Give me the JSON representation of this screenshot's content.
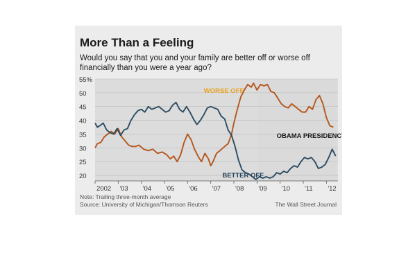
{
  "chart_data": {
    "type": "line",
    "title": "More Than a Feeling",
    "subtitle_lines": [
      "Would you say that you and your family are better off or worse off",
      "financially than you were a year ago?"
    ],
    "ylim": [
      18,
      55
    ],
    "yticks": [
      20,
      25,
      30,
      35,
      40,
      45,
      50,
      55
    ],
    "ytick_labels": [
      "20",
      "25",
      "30",
      "35",
      "40",
      "45",
      "50",
      "55%"
    ],
    "xlim": [
      2002.0,
      2012.5
    ],
    "xticks": [
      2002,
      2003,
      2004,
      2005,
      2006,
      2007,
      2008,
      2009,
      2010,
      2011,
      2012
    ],
    "xtick_labels": [
      "2002",
      "'03",
      "'04",
      "'05",
      "'06",
      "'07",
      "'08",
      "'09",
      "'10",
      "'11",
      "'12"
    ],
    "grid": true,
    "shaded_region": {
      "label": "OBAMA PRESIDENCY",
      "x_start": 2009.05,
      "x_end": 2012.4,
      "color": "#d9d9d9"
    },
    "series": [
      {
        "name": "WORSE OFF",
        "label_color": "#e8a320",
        "color": "#b5561c",
        "x": [
          2002.0,
          2002.1,
          2002.25,
          2002.4,
          2002.55,
          2002.7,
          2002.85,
          2003.0,
          2003.15,
          2003.3,
          2003.45,
          2003.6,
          2003.75,
          2003.9,
          2004.1,
          2004.3,
          2004.5,
          2004.7,
          2004.9,
          2005.1,
          2005.25,
          2005.4,
          2005.55,
          2005.7,
          2005.85,
          2006.0,
          2006.15,
          2006.3,
          2006.45,
          2006.6,
          2006.75,
          2006.9,
          2007.0,
          2007.1,
          2007.25,
          2007.4,
          2007.6,
          2007.75,
          2007.9,
          2008.0,
          2008.15,
          2008.3,
          2008.45,
          2008.6,
          2008.75,
          2008.85,
          2009.0,
          2009.15,
          2009.3,
          2009.45,
          2009.6,
          2009.75,
          2009.9,
          2010.05,
          2010.2,
          2010.35,
          2010.5,
          2010.65,
          2010.8,
          2010.95,
          2011.1,
          2011.25,
          2011.4,
          2011.55,
          2011.7,
          2011.85,
          2012.0,
          2012.15,
          2012.3
        ],
        "y": [
          30,
          31.5,
          32,
          34,
          35,
          36,
          35,
          37,
          34,
          32.5,
          31,
          30.5,
          30.5,
          31,
          29.5,
          29,
          29.5,
          28,
          28.5,
          27.5,
          26,
          27,
          25,
          27.5,
          32,
          35,
          33,
          29.5,
          27,
          25,
          28,
          26,
          23.5,
          25,
          28,
          29,
          30.5,
          31.5,
          35,
          39,
          44,
          48.5,
          51,
          53,
          52,
          53.5,
          51,
          53,
          52.5,
          53,
          50.5,
          50,
          48,
          46,
          45,
          44.5,
          46,
          45,
          44,
          43,
          43,
          45,
          44,
          47.5,
          49,
          46,
          41,
          38,
          37.5
        ]
      },
      {
        "name": "BETTER OFF",
        "label_color": "#1d3f57",
        "color": "#2c4c62",
        "x": [
          2002.0,
          2002.1,
          2002.2,
          2002.35,
          2002.5,
          2002.65,
          2002.8,
          2002.95,
          2003.1,
          2003.25,
          2003.4,
          2003.55,
          2003.7,
          2003.85,
          2004.0,
          2004.15,
          2004.3,
          2004.45,
          2004.6,
          2004.75,
          2004.9,
          2005.05,
          2005.2,
          2005.35,
          2005.5,
          2005.65,
          2005.8,
          2005.95,
          2006.1,
          2006.25,
          2006.4,
          2006.55,
          2006.7,
          2006.85,
          2007.0,
          2007.15,
          2007.3,
          2007.45,
          2007.6,
          2007.75,
          2007.9,
          2008.05,
          2008.2,
          2008.35,
          2008.5,
          2008.65,
          2008.8,
          2008.95,
          2009.1,
          2009.25,
          2009.4,
          2009.55,
          2009.7,
          2009.85,
          2010.0,
          2010.15,
          2010.3,
          2010.45,
          2010.6,
          2010.75,
          2010.9,
          2011.05,
          2011.2,
          2011.35,
          2011.5,
          2011.65,
          2011.8,
          2011.95,
          2012.1,
          2012.25,
          2012.4
        ],
        "y": [
          39,
          37.5,
          38,
          39,
          36.5,
          35.5,
          35,
          37,
          34.5,
          36.5,
          37,
          40,
          42,
          43.5,
          44,
          43,
          45,
          44,
          44.5,
          45,
          44,
          43,
          43.5,
          45.5,
          46.5,
          44,
          43,
          45,
          43,
          40.5,
          38.5,
          40,
          42,
          44.5,
          45,
          44.5,
          44,
          41.5,
          40.5,
          36.5,
          34.5,
          30.5,
          25.5,
          22,
          21,
          20.5,
          19.5,
          18.5,
          19.5,
          19,
          19.5,
          19,
          19.5,
          21,
          20.5,
          21.5,
          21,
          22.5,
          23.5,
          23,
          25,
          26.5,
          26,
          26.5,
          25,
          22.5,
          23,
          24,
          26.5,
          29.5,
          27
        ]
      }
    ],
    "note": "Note: Trailing three-month average",
    "source": "Source: University of Michigan/Thomson Reuters",
    "credit": "The Wall Street Journal",
    "colors": {
      "figure_background": "#ececec",
      "plot_background": "#dcdcdc",
      "grid": "#bdbdbd",
      "text_dark": "#1a1a1a",
      "text_muted": "#555555"
    }
  }
}
